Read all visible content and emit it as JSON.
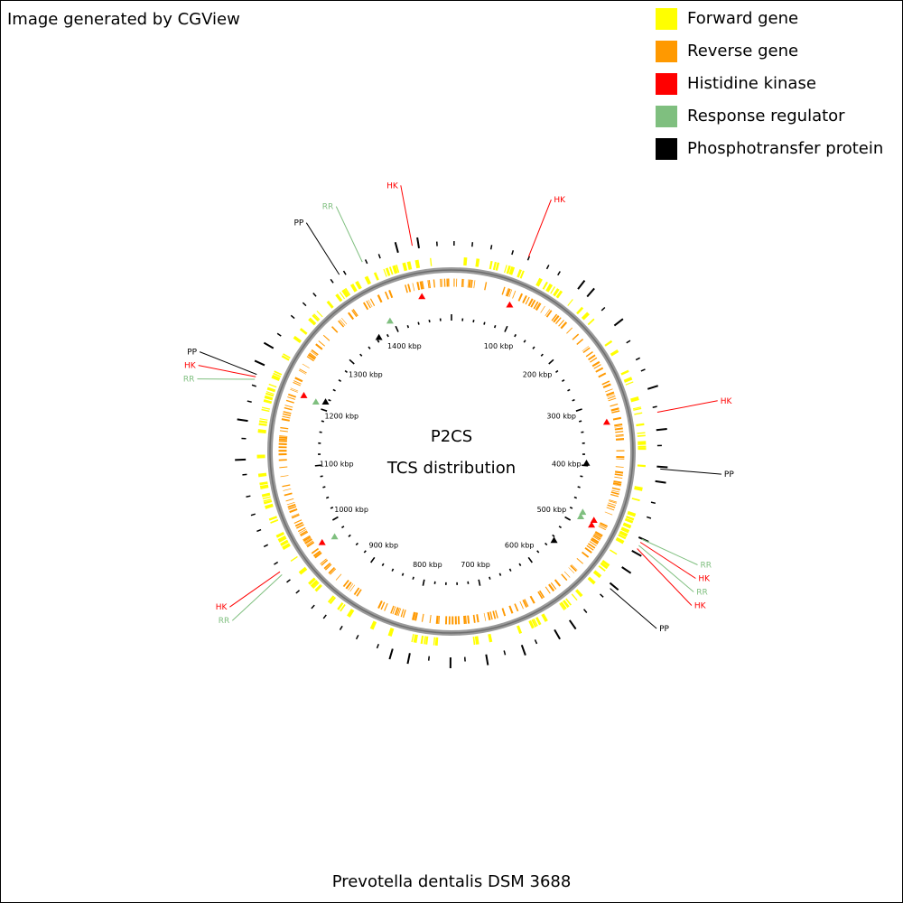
{
  "credit": "Image generated by CGView",
  "footer": "Prevotella dentalis DSM 3688",
  "center": {
    "line1": "P2CS",
    "line2": "TCS distribution"
  },
  "legend": [
    {
      "label": "Forward gene",
      "color": "#ffff00"
    },
    {
      "label": "Reverse gene",
      "color": "#ff9900"
    },
    {
      "label": "Histidine kinase",
      "color": "#ff0000"
    },
    {
      "label": "Response regulator",
      "color": "#7fbf7f"
    },
    {
      "label": "Phosphotransfer protein",
      "color": "#000000"
    }
  ],
  "map": {
    "genome_length_kbp": 1500,
    "tick_labels": [
      "100 kbp",
      "200 kbp",
      "300 kbp",
      "400 kbp",
      "500 kbp",
      "600 kbp",
      "700 kbp",
      "800 kbp",
      "900 kbp",
      "1000 kbp",
      "1100 kbp",
      "1200 kbp",
      "1300 kbp",
      "1400 kbp"
    ],
    "backbone_color": "#808080",
    "annotations": [
      {
        "label": "HK",
        "type": "hk",
        "kbp": 1455
      },
      {
        "label": "HK",
        "type": "hk",
        "kbp": 90
      },
      {
        "label": "RR",
        "type": "rr",
        "kbp": 1395
      },
      {
        "label": "PP",
        "type": "pp",
        "kbp": 1365
      },
      {
        "label": "PP",
        "type": "pp",
        "kbp": 1215
      },
      {
        "label": "HK",
        "type": "hk",
        "kbp": 1212
      },
      {
        "label": "RR",
        "type": "rr",
        "kbp": 1209
      },
      {
        "label": "HK",
        "type": "hk",
        "kbp": 330
      },
      {
        "label": "PP",
        "type": "pp",
        "kbp": 395
      },
      {
        "label": "RR",
        "type": "rr",
        "kbp": 478
      },
      {
        "label": "HK",
        "type": "hk",
        "kbp": 482
      },
      {
        "label": "RR",
        "type": "rr",
        "kbp": 486
      },
      {
        "label": "HK",
        "type": "hk",
        "kbp": 490
      },
      {
        "label": "PP",
        "type": "pp",
        "kbp": 545
      },
      {
        "label": "RR",
        "type": "rr",
        "kbp": 975
      },
      {
        "label": "HK",
        "type": "hk",
        "kbp": 979
      }
    ]
  }
}
